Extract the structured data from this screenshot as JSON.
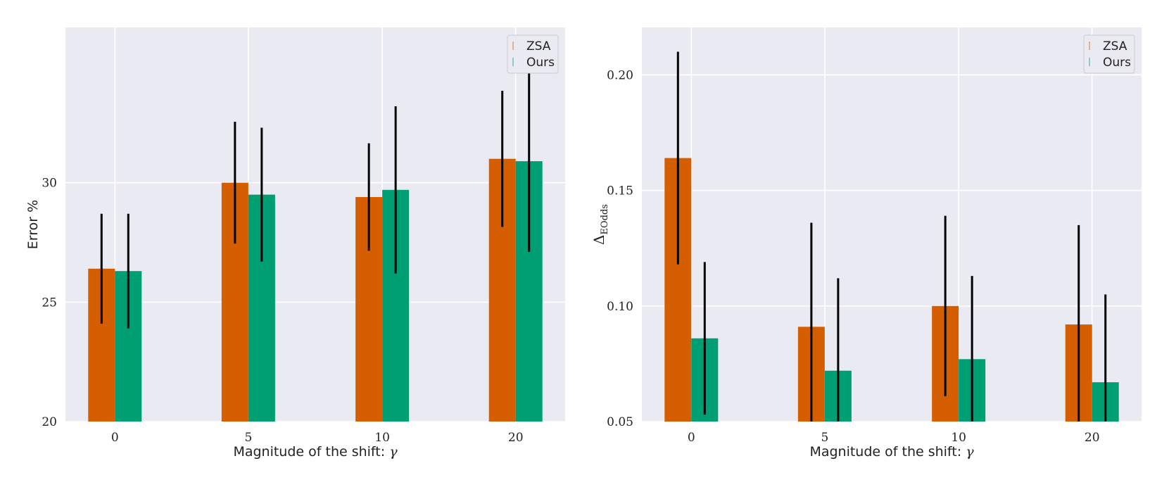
{
  "colors": {
    "zsa": "#d55e00",
    "ours": "#009e73",
    "panel_bg": "#eaeaf2",
    "grid": "#ffffff",
    "err": "#000000"
  },
  "chart_data": [
    {
      "type": "bar",
      "title": "",
      "categories": [
        "0",
        "5",
        "10",
        "20"
      ],
      "xlabel": "Magnitude of the shift: ",
      "xlabel_symbol": "γ",
      "ylabel": "Error %",
      "ylim": [
        20,
        36.5
      ],
      "yticks": [
        "20",
        "25",
        "30"
      ],
      "ytick_values": [
        20,
        25,
        30
      ],
      "legend": {
        "position": "top-right",
        "entries": [
          "ZSA",
          "Ours"
        ]
      },
      "series": [
        {
          "name": "ZSA",
          "values": [
            26.4,
            30.0,
            29.4,
            31.0
          ],
          "err": [
            2.3,
            2.55,
            2.25,
            2.85
          ]
        },
        {
          "name": "Ours",
          "values": [
            26.3,
            29.5,
            29.7,
            30.9
          ],
          "err": [
            2.4,
            2.8,
            3.5,
            3.8
          ]
        }
      ]
    },
    {
      "type": "bar",
      "title": "",
      "categories": [
        "0",
        "5",
        "10",
        "20"
      ],
      "xlabel": "Magnitude of the shift: ",
      "xlabel_symbol": "γ",
      "ylabel": "Δ",
      "ylabel_sub": "EOdds",
      "ylim": [
        0.05,
        0.2205
      ],
      "yticks": [
        "0.05",
        "0.10",
        "0.15",
        "0.20"
      ],
      "ytick_values": [
        0.05,
        0.1,
        0.15,
        0.2
      ],
      "legend": {
        "position": "top-right",
        "entries": [
          "ZSA",
          "Ours"
        ]
      },
      "series": [
        {
          "name": "ZSA",
          "values": [
            0.164,
            0.091,
            0.1,
            0.092
          ],
          "err": [
            0.046,
            0.045,
            0.039,
            0.043
          ]
        },
        {
          "name": "Ours",
          "values": [
            0.086,
            0.072,
            0.077,
            0.067
          ],
          "err": [
            0.033,
            0.04,
            0.036,
            0.038
          ]
        }
      ]
    }
  ]
}
